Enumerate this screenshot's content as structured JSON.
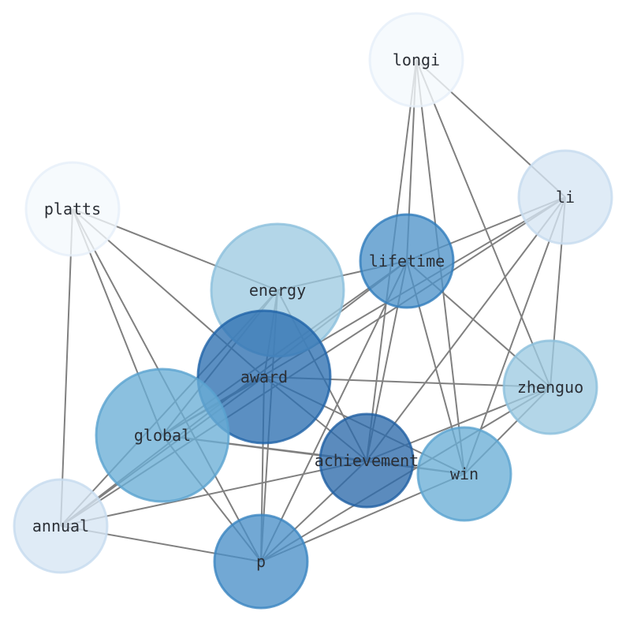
{
  "nodes": [
    {
      "id": "longi",
      "label": "longi",
      "color": "#f4f8fd",
      "stroke": "#e6eff9",
      "size": "small"
    },
    {
      "id": "li",
      "label": "li",
      "color": "#d6e5f4",
      "stroke": "#c6dbef",
      "size": "small"
    },
    {
      "id": "platts",
      "label": "platts",
      "color": "#f4f8fd",
      "stroke": "#e6eff9",
      "size": "small"
    },
    {
      "id": "lifetime",
      "label": "lifetime",
      "color": "#4f94c9",
      "stroke": "#2f7cbc",
      "size": "small"
    },
    {
      "id": "energy",
      "label": "energy",
      "color": "#9ecae1",
      "stroke": "#8bbfdc",
      "size": "large"
    },
    {
      "id": "award",
      "label": "award",
      "color": "#2d6fb1",
      "stroke": "#1f63a8",
      "size": "large"
    },
    {
      "id": "zhenguo",
      "label": "zhenguo",
      "color": "#9ecae1",
      "stroke": "#8bbfdc",
      "size": "small"
    },
    {
      "id": "global",
      "label": "global",
      "color": "#6aaed6",
      "stroke": "#5aa2cf",
      "size": "large"
    },
    {
      "id": "achievement",
      "label": "achievement",
      "color": "#2d6aab",
      "stroke": "#1f5fa3",
      "size": "small"
    },
    {
      "id": "win",
      "label": "win",
      "color": "#6aaed6",
      "stroke": "#5aa2cf",
      "size": "small"
    },
    {
      "id": "annual",
      "label": "annual",
      "color": "#d6e5f4",
      "stroke": "#c6dbef",
      "size": "small"
    },
    {
      "id": "p",
      "label": "p",
      "color": "#4a90c8",
      "stroke": "#3a84c0",
      "size": "small"
    }
  ],
  "edges": [
    [
      "longi",
      "li"
    ],
    [
      "longi",
      "lifetime"
    ],
    [
      "longi",
      "achievement"
    ],
    [
      "longi",
      "win"
    ],
    [
      "longi",
      "zhenguo"
    ],
    [
      "li",
      "lifetime"
    ],
    [
      "li",
      "global"
    ],
    [
      "li",
      "annual"
    ],
    [
      "li",
      "achievement"
    ],
    [
      "li",
      "win"
    ],
    [
      "li",
      "zhenguo"
    ],
    [
      "platts",
      "energy"
    ],
    [
      "platts",
      "award"
    ],
    [
      "platts",
      "global"
    ],
    [
      "platts",
      "p"
    ],
    [
      "platts",
      "annual"
    ],
    [
      "lifetime",
      "energy"
    ],
    [
      "lifetime",
      "global"
    ],
    [
      "lifetime",
      "annual"
    ],
    [
      "lifetime",
      "achievement"
    ],
    [
      "lifetime",
      "win"
    ],
    [
      "lifetime",
      "zhenguo"
    ],
    [
      "lifetime",
      "p"
    ],
    [
      "energy",
      "global"
    ],
    [
      "energy",
      "annual"
    ],
    [
      "energy",
      "p"
    ],
    [
      "energy",
      "achievement"
    ],
    [
      "energy",
      "award"
    ],
    [
      "award",
      "zhenguo"
    ],
    [
      "award",
      "achievement"
    ],
    [
      "award",
      "win"
    ],
    [
      "award",
      "annual"
    ],
    [
      "award",
      "p"
    ],
    [
      "award",
      "global"
    ],
    [
      "global",
      "achievement"
    ],
    [
      "global",
      "win"
    ],
    [
      "global",
      "p"
    ],
    [
      "zhenguo",
      "achievement"
    ],
    [
      "zhenguo",
      "win"
    ],
    [
      "zhenguo",
      "p"
    ],
    [
      "achievement",
      "annual"
    ],
    [
      "achievement",
      "p"
    ],
    [
      "achievement",
      "win"
    ],
    [
      "win",
      "p"
    ],
    [
      "annual",
      "p"
    ]
  ],
  "edge_color": "#808080"
}
